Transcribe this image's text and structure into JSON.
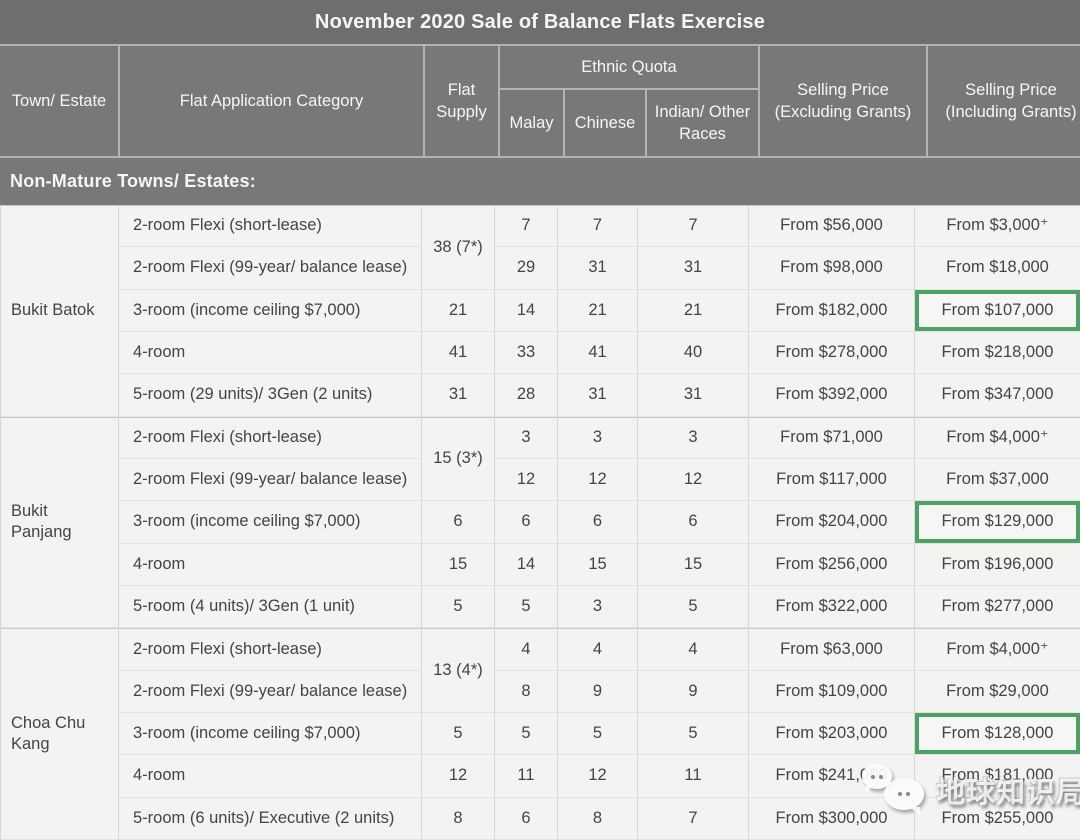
{
  "title": "November 2020 Sale of Balance Flats Exercise",
  "header": {
    "town": "Town/ Estate",
    "category": "Flat Application Category",
    "supply": "Flat Supply",
    "ethnic_quota": "Ethnic Quota",
    "malay": "Malay",
    "chinese": "Chinese",
    "indian": "Indian/ Other Races",
    "price_excluding": "Selling Price (Excluding Grants)",
    "price_including": "Selling Price (Including Grants)"
  },
  "section": "Non-Mature Towns/ Estates:",
  "watermark": {
    "text": "地球知识局",
    "icon": "wechat-speech-bubbles"
  },
  "colors": {
    "title_bg": "#706e6d",
    "header_bg": "#7a7877",
    "band_bg": "#7a7877",
    "header_text": "#f6f6f4",
    "body_bg": "#f3f3f1",
    "body_text": "#454442",
    "vline": "#d8d7d5",
    "hline": "#e4e3e1",
    "gline": "#c8c7c5",
    "grid_light": "#b5b3b1",
    "highlight_green": "#4ba263"
  },
  "chart_data": {
    "type": "table",
    "title": "November 2020 Sale of Balance Flats Exercise",
    "section": "Non-Mature Towns/ Estates:",
    "columns": [
      "Town/ Estate",
      "Flat Application Category",
      "Flat Supply",
      "Ethnic Quota - Malay",
      "Ethnic Quota - Chinese",
      "Ethnic Quota - Indian/ Other Races",
      "Selling Price (Excluding Grants)",
      "Selling Price (Including Grants)"
    ],
    "groups": [
      {
        "town": "Bukit Batok",
        "rows": [
          {
            "category": "2-room Flexi (short-lease)",
            "supply": "38 (7*)",
            "supply_rowspan": 2,
            "malay": "7",
            "chinese": "7",
            "indian": "7",
            "price_excl": "From $56,000",
            "price_incl": "From $3,000⁺",
            "highlight": false
          },
          {
            "category": "2-room Flexi (99-year/ balance lease)",
            "supply": null,
            "malay": "29",
            "chinese": "31",
            "indian": "31",
            "price_excl": "From $98,000",
            "price_incl": "From $18,000",
            "highlight": false
          },
          {
            "category": "3-room (income ceiling $7,000)",
            "supply": "21",
            "malay": "14",
            "chinese": "21",
            "indian": "21",
            "price_excl": "From $182,000",
            "price_incl": "From $107,000",
            "highlight": true
          },
          {
            "category": "4-room",
            "supply": "41",
            "malay": "33",
            "chinese": "41",
            "indian": "40",
            "price_excl": "From $278,000",
            "price_incl": "From $218,000",
            "highlight": false
          },
          {
            "category": "5-room (29 units)/ 3Gen (2 units)",
            "supply": "31",
            "malay": "28",
            "chinese": "31",
            "indian": "31",
            "price_excl": "From $392,000",
            "price_incl": "From $347,000",
            "highlight": false
          }
        ]
      },
      {
        "town": "Bukit Panjang",
        "rows": [
          {
            "category": "2-room Flexi (short-lease)",
            "supply": "15 (3*)",
            "supply_rowspan": 2,
            "malay": "3",
            "chinese": "3",
            "indian": "3",
            "price_excl": "From $71,000",
            "price_incl": "From $4,000⁺",
            "highlight": false
          },
          {
            "category": "2-room Flexi (99-year/ balance lease)",
            "supply": null,
            "malay": "12",
            "chinese": "12",
            "indian": "12",
            "price_excl": "From $117,000",
            "price_incl": "From $37,000",
            "highlight": false
          },
          {
            "category": "3-room (income ceiling $7,000)",
            "supply": "6",
            "malay": "6",
            "chinese": "6",
            "indian": "6",
            "price_excl": "From $204,000",
            "price_incl": "From $129,000",
            "highlight": true
          },
          {
            "category": "4-room",
            "supply": "15",
            "malay": "14",
            "chinese": "15",
            "indian": "15",
            "price_excl": "From $256,000",
            "price_incl": "From $196,000",
            "highlight": false
          },
          {
            "category": "5-room (4 units)/ 3Gen (1 unit)",
            "supply": "5",
            "malay": "5",
            "chinese": "3",
            "indian": "5",
            "price_excl": "From $322,000",
            "price_incl": "From $277,000",
            "highlight": false
          }
        ]
      },
      {
        "town": "Choa Chu Kang",
        "rows": [
          {
            "category": "2-room Flexi (short-lease)",
            "supply": "13 (4*)",
            "supply_rowspan": 2,
            "malay": "4",
            "chinese": "4",
            "indian": "4",
            "price_excl": "From $63,000",
            "price_incl": "From $4,000⁺",
            "highlight": false
          },
          {
            "category": "2-room Flexi (99-year/ balance lease)",
            "supply": null,
            "malay": "8",
            "chinese": "9",
            "indian": "9",
            "price_excl": "From $109,000",
            "price_incl": "From $29,000",
            "highlight": false
          },
          {
            "category": "3-room (income ceiling $7,000)",
            "supply": "5",
            "malay": "5",
            "chinese": "5",
            "indian": "5",
            "price_excl": "From $203,000",
            "price_incl": "From $128,000",
            "highlight": true
          },
          {
            "category": "4-room",
            "supply": "12",
            "malay": "11",
            "chinese": "12",
            "indian": "11",
            "price_excl": "From $241,000",
            "price_incl": "From $181,000",
            "highlight": false
          },
          {
            "category": "5-room (6 units)/ Executive (2 units)",
            "supply": "8",
            "malay": "6",
            "chinese": "8",
            "indian": "7",
            "price_excl": "From $300,000",
            "price_incl": "From $255,000",
            "highlight": false
          }
        ]
      }
    ]
  }
}
